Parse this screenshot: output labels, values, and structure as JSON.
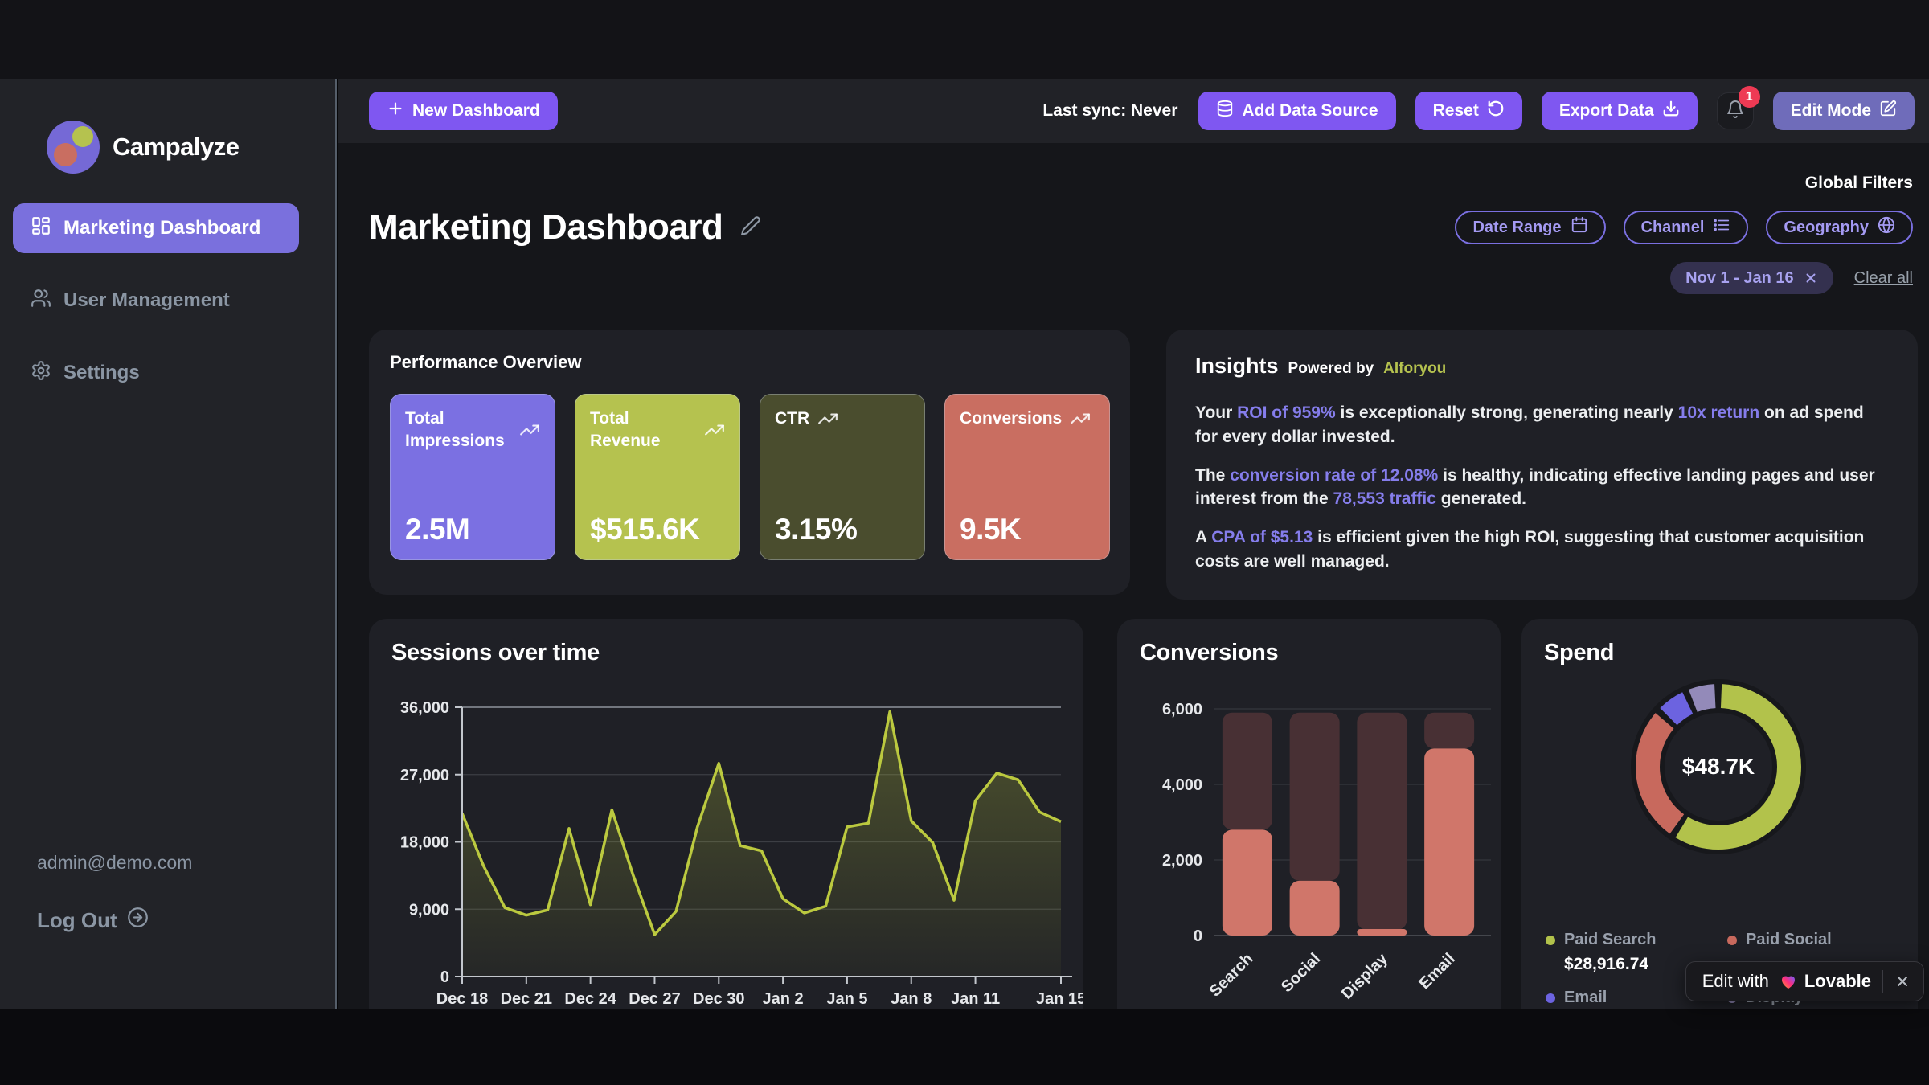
{
  "app": {
    "name": "Campalyze"
  },
  "topbar": {
    "new_dashboard_label": "New Dashboard",
    "last_sync_label": "Last sync: Never",
    "add_data_source_label": "Add Data Source",
    "reset_label": "Reset",
    "export_label": "Export Data",
    "notification_count": "1",
    "edit_mode_label": "Edit Mode"
  },
  "sidebar": {
    "items": [
      {
        "label": "Marketing Dashboard",
        "icon": "dashboard",
        "active": true
      },
      {
        "label": "User Management",
        "icon": "users",
        "active": false
      },
      {
        "label": "Settings",
        "icon": "settings",
        "active": false
      }
    ],
    "user_email": "admin@demo.com",
    "logout_label": "Log Out"
  },
  "page": {
    "title": "Marketing Dashboard",
    "global_filters_label": "Global Filters",
    "filters": [
      {
        "label": "Date Range",
        "icon": "calendar"
      },
      {
        "label": "Channel",
        "icon": "list"
      },
      {
        "label": "Geography",
        "icon": "globe"
      }
    ],
    "active_filter_chip": "Nov 1 - Jan 16",
    "clear_all_label": "Clear all"
  },
  "performance": {
    "title": "Performance Overview",
    "kpis": [
      {
        "label": "Total Impressions",
        "value": "2.5M",
        "color": "#7b70e2"
      },
      {
        "label": "Total Revenue",
        "value": "$515.6K",
        "color": "#b5c24f"
      },
      {
        "label": "CTR",
        "value": "3.15%",
        "color": "#4a4d2e"
      },
      {
        "label": "Conversions",
        "value": "9.5K",
        "color": "#c96e61"
      }
    ]
  },
  "insights": {
    "title": "Insights",
    "powered_by": "Powered by",
    "provider": "AIforyou",
    "highlight_color": "#857deb",
    "paragraphs": [
      {
        "parts": [
          {
            "t": "Your "
          },
          {
            "t": "ROI of 959%",
            "hl": true
          },
          {
            "t": " is exceptionally strong, generating nearly "
          },
          {
            "t": "10x return",
            "hl": true
          },
          {
            "t": " on ad spend for every dollar invested."
          }
        ]
      },
      {
        "parts": [
          {
            "t": "The "
          },
          {
            "t": "conversion rate of 12.08%",
            "hl": true
          },
          {
            "t": " is healthy, indicating effective landing pages and user interest from the "
          },
          {
            "t": "78,553 traffic",
            "hl": true
          },
          {
            "t": " generated."
          }
        ]
      },
      {
        "parts": [
          {
            "t": "A "
          },
          {
            "t": "CPA of $5.13",
            "hl": true
          },
          {
            "t": " is efficient given the high ROI, suggesting that customer acquisition costs are well managed."
          }
        ]
      }
    ]
  },
  "chart_data": [
    {
      "type": "area",
      "title": "Sessions over time",
      "start_date": "Dec 18",
      "end_date": "Jan 15",
      "interval": "daily",
      "values": [
        21800,
        14800,
        9200,
        8200,
        8900,
        19800,
        9600,
        22300,
        13500,
        5600,
        8700,
        20000,
        28500,
        17500,
        16800,
        10400,
        8500,
        9400,
        20000,
        20500,
        35400,
        20800,
        17900,
        10200,
        23500,
        27200,
        26300,
        22000,
        20700
      ],
      "ylim": [
        0,
        36000
      ],
      "yticks": [
        0,
        9000,
        18000,
        27000,
        36000
      ],
      "ytick_labels": [
        "0",
        "9,000",
        "18,000",
        "27,000",
        "36,000"
      ],
      "xtick_labels": [
        "Dec 18",
        "Dec 21",
        "Dec 24",
        "Dec 27",
        "Dec 30",
        "Jan 2",
        "Jan 5",
        "Jan 8",
        "Jan 11",
        "Jan 15"
      ],
      "xtick_indices": [
        0,
        3,
        6,
        9,
        12,
        15,
        18,
        21,
        24,
        28
      ],
      "line_color": "#bbc93f",
      "grid": true
    },
    {
      "type": "bar",
      "title": "Conversions",
      "categories": [
        "Search",
        "Social",
        "Display",
        "Email"
      ],
      "values": [
        2800,
        1450,
        150,
        4950
      ],
      "track_max": 5900,
      "ylim": [
        0,
        6000
      ],
      "yticks": [
        0,
        2000,
        4000,
        6000
      ],
      "ytick_labels": [
        "0",
        "2,000",
        "4,000",
        "6,000"
      ],
      "bar_color": "#d0766a",
      "track_color": "#483034",
      "grid": true
    },
    {
      "type": "donut",
      "title": "Spend",
      "center_label": "$48.7K",
      "slices": [
        {
          "label": "Paid Search",
          "value_label": "$28,916.74",
          "pct": 59.4,
          "color": "#b2c24b"
        },
        {
          "label": "Paid Social",
          "pct": 27.6,
          "color": "#c8695d"
        },
        {
          "label": "Email",
          "pct": 6.6,
          "color": "#6c63e0"
        },
        {
          "label": "Display",
          "pct": 6.4,
          "color": "#938ab9"
        }
      ],
      "legend_order": [
        "Paid Search",
        "Paid Social",
        "Email",
        "Display"
      ],
      "legend_position": "bottom"
    }
  ],
  "lovable_badge": {
    "prefix": "Edit with",
    "brand": "Lovable"
  },
  "colors": {
    "accent_purple": "#7f57f1",
    "muted_purple": "#6f6cba",
    "sidebar_active": "#7a70dd",
    "lime": "#b5c24f",
    "salmon": "#c96e61",
    "olive": "#4a4d2e"
  }
}
